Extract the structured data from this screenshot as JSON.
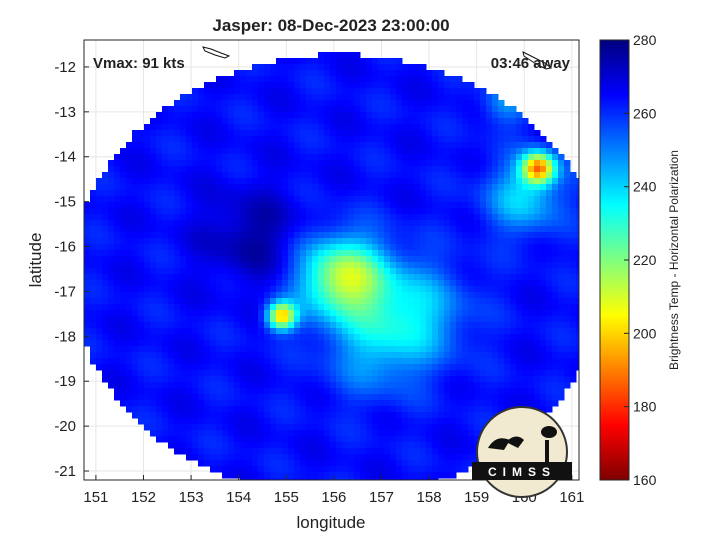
{
  "chart_data": {
    "type": "heatmap",
    "title": "Jasper: 08-Dec-2023 23:00:00",
    "annotations": {
      "vmax": "Vmax: 91 kts",
      "time_away": "03:46 away"
    },
    "xlabel": "longitude",
    "ylabel": "latitude",
    "xlim": [
      150.75,
      161.15
    ],
    "ylim": [
      -21.2,
      -11.4
    ],
    "xticks": [
      151,
      152,
      153,
      154,
      155,
      156,
      157,
      158,
      159,
      160,
      161
    ],
    "yticks": [
      -12,
      -13,
      -14,
      -15,
      -16,
      -17,
      -18,
      -19,
      -20,
      -21
    ],
    "grid": true,
    "colorbar": {
      "label": "Brightness Temp - Horizontal Polarization",
      "range": [
        160,
        280
      ],
      "ticks": [
        280,
        260,
        240,
        220,
        200,
        180,
        160
      ],
      "colormap": "jet",
      "placement": "right"
    },
    "swath": {
      "center": [
        156.1,
        -16.65
      ],
      "radius_deg": 5.6,
      "background_value": 264
    },
    "features": [
      {
        "name": "cold-core",
        "lon": 156.2,
        "lat": -16.7,
        "value": 212,
        "spread": 0.9
      },
      {
        "name": "band-east",
        "lon": 157.6,
        "lat": -17.5,
        "value": 238,
        "spread": 1.1
      },
      {
        "name": "band-south",
        "lon": 156.8,
        "lat": -18.4,
        "value": 250,
        "spread": 1.0
      },
      {
        "name": "west-spot",
        "lon": 154.9,
        "lat": -17.55,
        "value": 200,
        "spread": 0.3
      },
      {
        "name": "east-edge",
        "lon": 160.3,
        "lat": -14.25,
        "value": 196,
        "spread": 0.35
      },
      {
        "name": "east-band",
        "lon": 160.0,
        "lat": -14.9,
        "value": 240,
        "spread": 0.8
      },
      {
        "name": "ne-edge",
        "lon": 159.6,
        "lat": -12.8,
        "value": 248,
        "spread": 0.5
      },
      {
        "name": "eye-warm",
        "lon": 154.3,
        "lat": -15.8,
        "value": 276,
        "spread": 1.0
      }
    ]
  },
  "logo": {
    "text": "CIMSS"
  },
  "colors": {
    "ocean_warm": "#1a3fd6",
    "axes": "#262626"
  }
}
